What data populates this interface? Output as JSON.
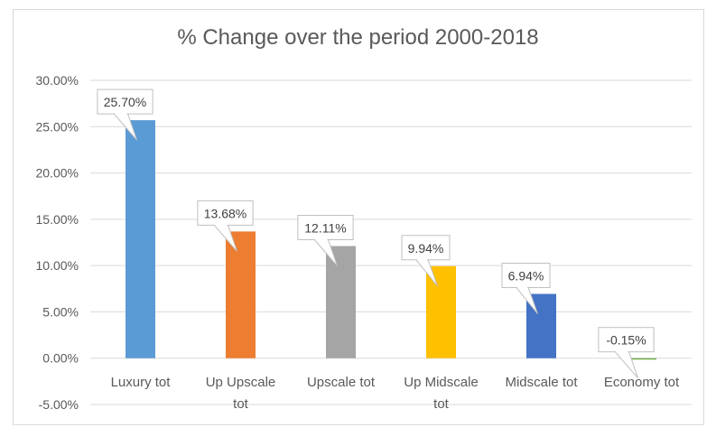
{
  "chart_data": {
    "type": "bar",
    "title": "% Change over the period 2000-2018",
    "categories": [
      "Luxury tot",
      "Up Upscale tot",
      "Upscale tot",
      "Up Midscale tot",
      "Midscale tot",
      "Economy tot"
    ],
    "category_lines": [
      [
        "Luxury tot"
      ],
      [
        "Up Upscale",
        "tot"
      ],
      [
        "Upscale tot"
      ],
      [
        "Up Midscale",
        "tot"
      ],
      [
        "Midscale tot"
      ],
      [
        "Economy tot"
      ]
    ],
    "values": [
      25.7,
      13.68,
      12.11,
      9.94,
      6.94,
      -0.15
    ],
    "data_labels": [
      "25.70%",
      "13.68%",
      "12.11%",
      "9.94%",
      "6.94%",
      "-0.15%"
    ],
    "colors": [
      "#5b9bd5",
      "#ed7d31",
      "#a5a5a5",
      "#ffc000",
      "#4472c4",
      "#70ad47"
    ],
    "ylim": [
      -5,
      30
    ],
    "yticks": [
      30,
      25,
      20,
      15,
      10,
      5,
      0,
      -5
    ],
    "ytick_labels": [
      "30.00%",
      "25.00%",
      "20.00%",
      "15.00%",
      "10.00%",
      "5.00%",
      "0.00%",
      "-5.00%"
    ],
    "xlabel": "",
    "ylabel": "",
    "grid": true,
    "legend": false
  }
}
